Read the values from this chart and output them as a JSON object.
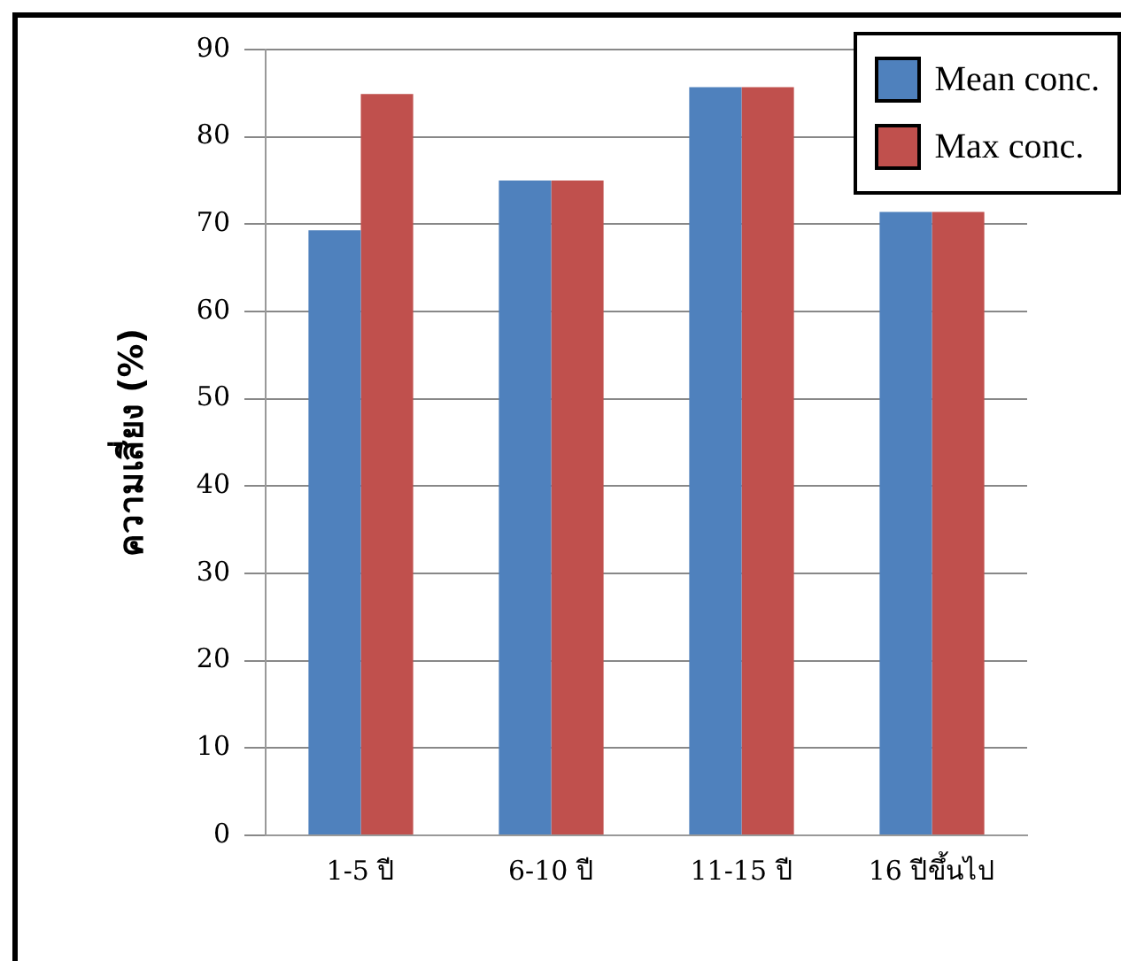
{
  "chart_data": {
    "type": "bar",
    "ylabel": "ความเสี่ยง (%)",
    "categories": [
      "1-5 ปี",
      "6-10 ปี",
      "11-15 ปี",
      "16 ปีขึ้นไป"
    ],
    "series": [
      {
        "name": "Mean conc.",
        "color": "#4f81bd",
        "values": [
          69.3,
          75,
          85.7,
          71.4
        ]
      },
      {
        "name": "Max conc.",
        "color": "#c0504d",
        "values": [
          84.9,
          75,
          85.7,
          71.4
        ]
      }
    ],
    "ylim": [
      0,
      90
    ],
    "yticks": [
      0,
      10,
      20,
      30,
      40,
      50,
      60,
      70,
      80,
      90
    ],
    "grid": "y",
    "legend": "top right"
  }
}
